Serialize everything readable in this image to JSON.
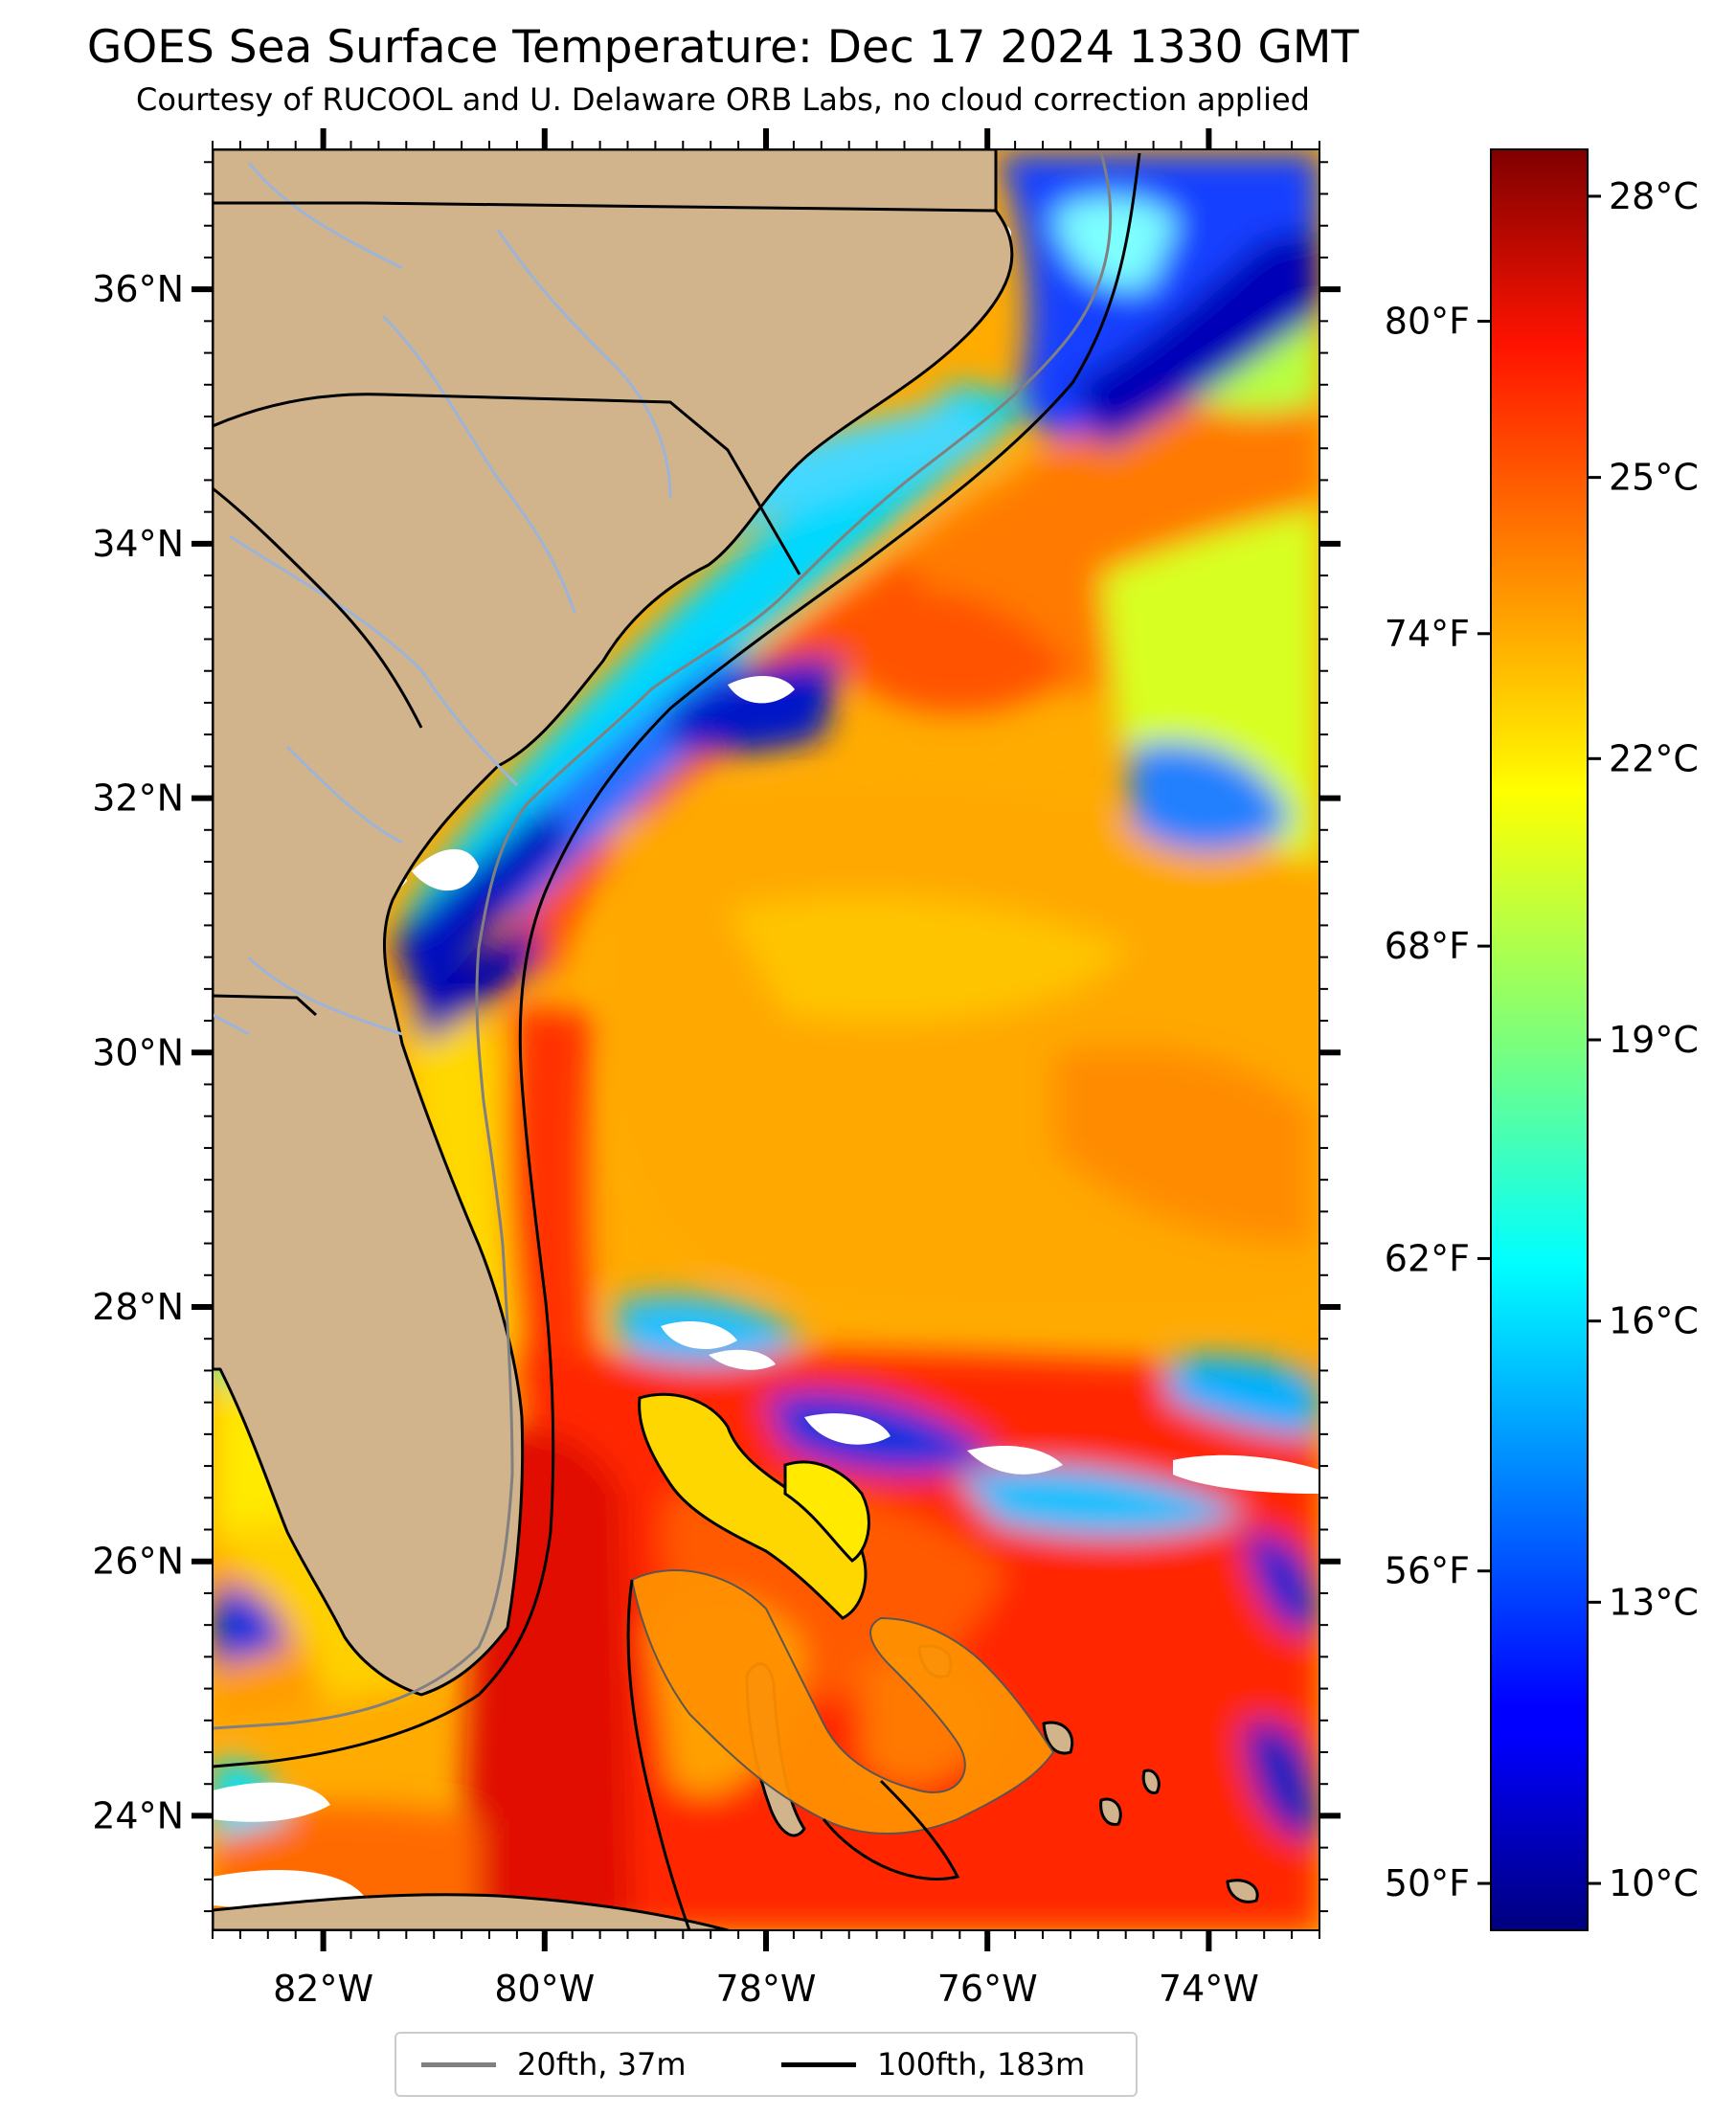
{
  "title": "GOES Sea Surface Temperature: Dec 17 2024 1330 GMT",
  "subtitle": "Courtesy of RUCOOL and U. Delaware ORB Labs, no cloud correction applied",
  "map": {
    "extent": {
      "lon_min": -83.0,
      "lon_max": -73.0,
      "lat_min": 23.1,
      "lat_max": 37.1
    },
    "land_color": "#d2b48c",
    "no_data_color": "#ffffff",
    "lat_ticks": [
      {
        "value": 36,
        "label": "36°N"
      },
      {
        "value": 34,
        "label": "34°N"
      },
      {
        "value": 32,
        "label": "32°N"
      },
      {
        "value": 30,
        "label": "30°N"
      },
      {
        "value": 28,
        "label": "28°N"
      },
      {
        "value": 26,
        "label": "26°N"
      },
      {
        "value": 24,
        "label": "24°N"
      }
    ],
    "lon_ticks": [
      {
        "value": -82,
        "label": "82°W"
      },
      {
        "value": -80,
        "label": "80°W"
      },
      {
        "value": -78,
        "label": "78°W"
      },
      {
        "value": -76,
        "label": "76°W"
      },
      {
        "value": -74,
        "label": "74°W"
      }
    ]
  },
  "colorbar": {
    "cmap": "jet",
    "celsius_min": 9.5,
    "celsius_max": 28.5,
    "celsius_ticks": [
      {
        "value": 28,
        "label": "28°C"
      },
      {
        "value": 25,
        "label": "25°C"
      },
      {
        "value": 22,
        "label": "22°C"
      },
      {
        "value": 19,
        "label": "19°C"
      },
      {
        "value": 16,
        "label": "16°C"
      },
      {
        "value": 13,
        "label": "13°C"
      },
      {
        "value": 10,
        "label": "10°C"
      }
    ],
    "fahrenheit_ticks": [
      {
        "value": 80,
        "label": "80°F"
      },
      {
        "value": 74,
        "label": "74°F"
      },
      {
        "value": 68,
        "label": "68°F"
      },
      {
        "value": 62,
        "label": "62°F"
      },
      {
        "value": 56,
        "label": "56°F"
      },
      {
        "value": 50,
        "label": "50°F"
      }
    ]
  },
  "legend": {
    "entries": [
      {
        "label": "20fth, 37m",
        "color": "#808080"
      },
      {
        "label": "100fth, 183m",
        "color": "#000000"
      }
    ]
  }
}
